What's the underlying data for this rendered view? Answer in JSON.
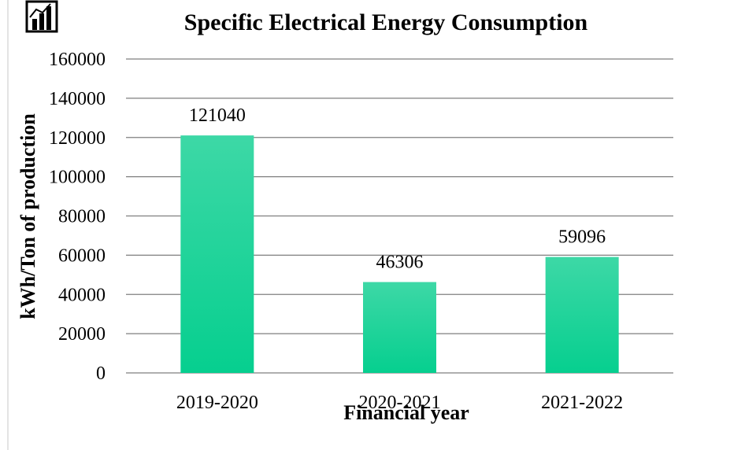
{
  "icon": "bar-chart-icon",
  "chart_data": {
    "type": "bar",
    "title": "Specific Electrical Energy Consumption",
    "xlabel": "Financial year",
    "ylabel": "kWh/Ton of production",
    "categories": [
      "2019-2020",
      "2020-2021",
      "2021-2022"
    ],
    "values": [
      121040,
      46306,
      59096
    ],
    "ylim": [
      0,
      160000
    ],
    "yticks": [
      0,
      20000,
      40000,
      60000,
      80000,
      100000,
      120000,
      140000,
      160000
    ],
    "grid": true,
    "legend": "none",
    "colors": {
      "bar_top": "#3dd8a6",
      "bar_bottom": "#06cf8f",
      "grid": "#7f7f7f"
    }
  }
}
